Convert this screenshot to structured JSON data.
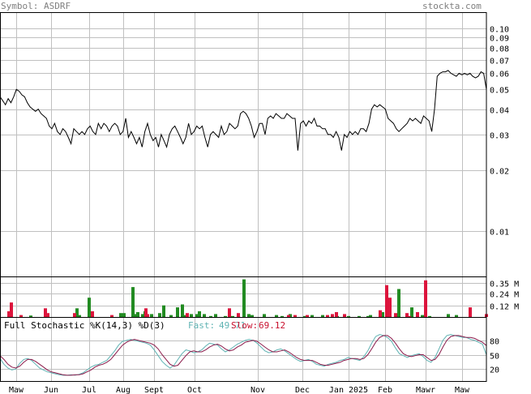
{
  "header": {
    "symbol_label": "Symbol: ASDRF",
    "site_label": "stockta.com"
  },
  "colors": {
    "price_line": "#000000",
    "grid": "#c0c0c0",
    "border": "#000000",
    "up_volume": "#228b22",
    "down_volume": "#dc143c",
    "fast_line": "#5fb3b3",
    "slow_line": "#8b1a4a",
    "fast_label": "#5fb3b3",
    "slow_label": "#c8102e"
  },
  "chart_data": [
    {
      "type": "line",
      "panel": "price",
      "scale": "log",
      "ylim": [
        0.006,
        0.12
      ],
      "y_ticks": [
        0.1,
        0.09,
        0.08,
        0.07,
        0.06,
        0.05,
        0.04,
        0.03,
        0.02,
        0.01
      ],
      "y_tick_labels": [
        "0.10",
        "0.09",
        "0.08",
        "0.07",
        "0.06",
        "0.05",
        "0.04",
        "0.03",
        "0.02",
        "0.01"
      ],
      "x_labels": [
        "Maw",
        "Jun",
        "Jul",
        "Aug",
        "Sept",
        "Oct",
        "Nov",
        "Dec",
        "Jan 2025",
        "Feb",
        "Mawr",
        "Maw"
      ],
      "series": [
        {
          "values": [
            0.046,
            0.044,
            0.042,
            0.045,
            0.043,
            0.046,
            0.05,
            0.049,
            0.047,
            0.046,
            0.043,
            0.041,
            0.04,
            0.039,
            0.04,
            0.038,
            0.037,
            0.036,
            0.033,
            0.032,
            0.034,
            0.031,
            0.03,
            0.032,
            0.031,
            0.029,
            0.027,
            0.032,
            0.031,
            0.03,
            0.031,
            0.03,
            0.032,
            0.033,
            0.031,
            0.03,
            0.034,
            0.032,
            0.034,
            0.033,
            0.031,
            0.033,
            0.034,
            0.033,
            0.03,
            0.031,
            0.036,
            0.029,
            0.031,
            0.029,
            0.027,
            0.029,
            0.026,
            0.031,
            0.034,
            0.03,
            0.028,
            0.029,
            0.026,
            0.03,
            0.028,
            0.026,
            0.03,
            0.032,
            0.033,
            0.031,
            0.029,
            0.027,
            0.029,
            0.034,
            0.03,
            0.031,
            0.033,
            0.032,
            0.033,
            0.029,
            0.026,
            0.03,
            0.031,
            0.03,
            0.029,
            0.033,
            0.03,
            0.031,
            0.034,
            0.033,
            0.032,
            0.033,
            0.038,
            0.039,
            0.038,
            0.036,
            0.033,
            0.029,
            0.031,
            0.034,
            0.034,
            0.03,
            0.036,
            0.037,
            0.036,
            0.038,
            0.037,
            0.036,
            0.036,
            0.038,
            0.037,
            0.036,
            0.036,
            0.025,
            0.034,
            0.035,
            0.033,
            0.035,
            0.034,
            0.036,
            0.033,
            0.033,
            0.032,
            0.032,
            0.03,
            0.03,
            0.029,
            0.031,
            0.029,
            0.025,
            0.03,
            0.029,
            0.031,
            0.03,
            0.031,
            0.03,
            0.032,
            0.032,
            0.031,
            0.034,
            0.04,
            0.042,
            0.041,
            0.042,
            0.041,
            0.04,
            0.036,
            0.035,
            0.034,
            0.032,
            0.031,
            0.032,
            0.033,
            0.034,
            0.036,
            0.035,
            0.036,
            0.035,
            0.034,
            0.037,
            0.036,
            0.035,
            0.031,
            0.04,
            0.058,
            0.06,
            0.061,
            0.061,
            0.062,
            0.06,
            0.059,
            0.058,
            0.06,
            0.059,
            0.06,
            0.059,
            0.06,
            0.058,
            0.057,
            0.058,
            0.061,
            0.06,
            0.05
          ]
        }
      ]
    },
    {
      "type": "bar",
      "panel": "volume",
      "ylim": [
        0,
        0.42
      ],
      "y_ticks": [
        0.35,
        0.24,
        0.12
      ],
      "y_tick_labels": [
        "0.35 M",
        "0.24 M",
        "0.12 M"
      ],
      "series": [
        {
          "name": "up",
          "values": [
            {
              "i": 36,
              "v": 0.015
            },
            {
              "i": 93,
              "v": 0.09
            },
            {
              "i": 96,
              "v": 0.02
            },
            {
              "i": 108,
              "v": 0.2
            },
            {
              "i": 147,
              "v": 0.04
            },
            {
              "i": 151,
              "v": 0.04
            },
            {
              "i": 162,
              "v": 0.31
            },
            {
              "i": 165,
              "v": 0.03
            },
            {
              "i": 168,
              "v": 0.05
            },
            {
              "i": 174,
              "v": 0.03
            },
            {
              "i": 177,
              "v": 0.06
            },
            {
              "i": 185,
              "v": 0.03
            },
            {
              "i": 195,
              "v": 0.04
            },
            {
              "i": 200,
              "v": 0.12
            },
            {
              "i": 209,
              "v": 0.02
            },
            {
              "i": 217,
              "v": 0.1
            },
            {
              "i": 223,
              "v": 0.13
            },
            {
              "i": 225,
              "v": 0.02
            },
            {
              "i": 234,
              "v": 0.03
            },
            {
              "i": 241,
              "v": 0.03
            },
            {
              "i": 244,
              "v": 0.06
            },
            {
              "i": 250,
              "v": 0.03
            },
            {
              "i": 258,
              "v": 0.01
            },
            {
              "i": 264,
              "v": 0.03
            },
            {
              "i": 276,
              "v": 0.01
            },
            {
              "i": 285,
              "v": 0.01
            },
            {
              "i": 299,
              "v": 0.39
            },
            {
              "i": 305,
              "v": 0.03
            },
            {
              "i": 309,
              "v": 0.02
            },
            {
              "i": 324,
              "v": 0.03
            },
            {
              "i": 339,
              "v": 0.02
            },
            {
              "i": 346,
              "v": 0.01
            },
            {
              "i": 356,
              "v": 0.03
            },
            {
              "i": 374,
              "v": 0.01
            },
            {
              "i": 383,
              "v": 0.02
            },
            {
              "i": 396,
              "v": 0.02
            },
            {
              "i": 414,
              "v": 0.01
            },
            {
              "i": 428,
              "v": 0.01
            },
            {
              "i": 441,
              "v": 0.01
            },
            {
              "i": 452,
              "v": 0.01
            },
            {
              "i": 455,
              "v": 0.02
            },
            {
              "i": 470,
              "v": 0.05
            },
            {
              "i": 490,
              "v": 0.29
            },
            {
              "i": 506,
              "v": 0.1
            },
            {
              "i": 519,
              "v": 0.02
            },
            {
              "i": 528,
              "v": 0.01
            },
            {
              "i": 551,
              "v": 0.03
            },
            {
              "i": 561,
              "v": 0.02
            }
          ]
        },
        {
          "name": "down",
          "values": [
            {
              "i": 9,
              "v": 0.06
            },
            {
              "i": 12,
              "v": 0.15
            },
            {
              "i": 24,
              "v": 0.02
            },
            {
              "i": 54,
              "v": 0.09
            },
            {
              "i": 57,
              "v": 0.04
            },
            {
              "i": 90,
              "v": 0.04
            },
            {
              "i": 112,
              "v": 0.06
            },
            {
              "i": 136,
              "v": 0.02
            },
            {
              "i": 178,
              "v": 0.09
            },
            {
              "i": 180,
              "v": 0.03
            },
            {
              "i": 229,
              "v": 0.04
            },
            {
              "i": 281,
              "v": 0.09
            },
            {
              "i": 292,
              "v": 0.04
            },
            {
              "i": 354,
              "v": 0.02
            },
            {
              "i": 362,
              "v": 0.02
            },
            {
              "i": 377,
              "v": 0.02
            },
            {
              "i": 402,
              "v": 0.02
            },
            {
              "i": 408,
              "v": 0.03
            },
            {
              "i": 413,
              "v": 0.05
            },
            {
              "i": 423,
              "v": 0.03
            },
            {
              "i": 467,
              "v": 0.07
            },
            {
              "i": 475,
              "v": 0.33
            },
            {
              "i": 479,
              "v": 0.2
            },
            {
              "i": 486,
              "v": 0.04
            },
            {
              "i": 500,
              "v": 0.04
            },
            {
              "i": 503,
              "v": 0.01
            },
            {
              "i": 513,
              "v": 0.05
            },
            {
              "i": 523,
              "v": 0.38
            },
            {
              "i": 578,
              "v": 0.1
            },
            {
              "i": 598,
              "v": 0.03
            }
          ]
        }
      ]
    },
    {
      "type": "line",
      "panel": "stochastic",
      "title": "Full Stochastic %K(14,3) %D(3)",
      "fast_label": "Fast:",
      "fast_value": "49.71",
      "slow_label": "Slow:",
      "slow_value": "69.12",
      "ylim": [
        0,
        100
      ],
      "y_ticks": [
        80,
        50,
        20
      ],
      "y_tick_labels": [
        "80",
        "50",
        "20"
      ],
      "series": [
        {
          "name": "Fast",
          "values": [
            42,
            30,
            22,
            18,
            20,
            32,
            40,
            42,
            38,
            30,
            22,
            18,
            14,
            12,
            10,
            8,
            7,
            7,
            8,
            7,
            9,
            12,
            18,
            24,
            28,
            30,
            34,
            38,
            48,
            58,
            70,
            78,
            80,
            82,
            80,
            78,
            76,
            74,
            70,
            60,
            48,
            36,
            28,
            22,
            28,
            40,
            52,
            60,
            58,
            54,
            56,
            60,
            68,
            74,
            72,
            70,
            62,
            56,
            60,
            66,
            72,
            76,
            80,
            82,
            80,
            74,
            66,
            58,
            54,
            56,
            60,
            62,
            58,
            52,
            46,
            40,
            36,
            38,
            40,
            36,
            30,
            28,
            26,
            30,
            32,
            34,
            38,
            40,
            44,
            42,
            40,
            38,
            46,
            58,
            74,
            88,
            92,
            90,
            86,
            78,
            64,
            52,
            48,
            44,
            48,
            50,
            52,
            46,
            38,
            34,
            44,
            62,
            80,
            90,
            92,
            90,
            88,
            86,
            86,
            82,
            80,
            76,
            72,
            49.71
          ]
        },
        {
          "name": "Slow",
          "values": [
            48,
            40,
            30,
            24,
            22,
            26,
            34,
            40,
            40,
            36,
            30,
            24,
            18,
            14,
            12,
            10,
            8,
            7,
            7,
            8,
            8,
            10,
            14,
            18,
            24,
            28,
            30,
            34,
            40,
            50,
            60,
            70,
            76,
            80,
            82,
            80,
            78,
            76,
            74,
            70,
            62,
            50,
            40,
            30,
            26,
            28,
            38,
            48,
            56,
            58,
            56,
            56,
            60,
            66,
            70,
            72,
            68,
            62,
            58,
            60,
            66,
            70,
            76,
            78,
            80,
            78,
            72,
            66,
            60,
            56,
            56,
            58,
            60,
            56,
            50,
            44,
            40,
            38,
            38,
            38,
            34,
            30,
            28,
            28,
            30,
            32,
            34,
            38,
            40,
            42,
            42,
            40,
            42,
            50,
            62,
            76,
            86,
            90,
            90,
            84,
            74,
            62,
            52,
            48,
            46,
            48,
            50,
            50,
            44,
            38,
            40,
            50,
            66,
            80,
            88,
            90,
            90,
            88,
            86,
            86,
            84,
            80,
            76,
            69.12
          ]
        }
      ]
    }
  ]
}
